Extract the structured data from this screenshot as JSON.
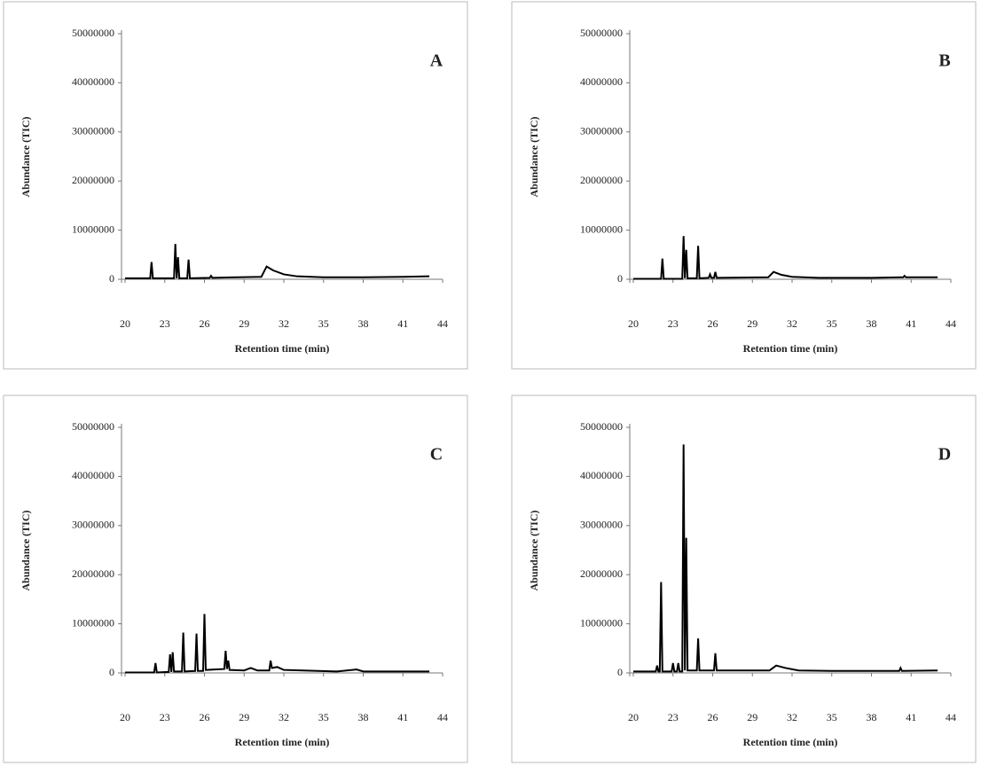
{
  "chart_data": [
    {
      "type": "line",
      "label": "A",
      "x_label": "Retention time (min)",
      "y_label": "Abundance (TIC)",
      "color": "#000000",
      "xlim": [
        20,
        44
      ],
      "ylim": [
        0,
        50000000
      ],
      "xticks": [
        20,
        23,
        26,
        29,
        32,
        35,
        38,
        41,
        44
      ],
      "yticks": [
        0,
        10000000,
        20000000,
        30000000,
        40000000,
        50000000
      ],
      "x": [
        20,
        21.9,
        22,
        22.1,
        23.7,
        23.8,
        23.9,
        24,
        24.1,
        24.7,
        24.8,
        24.9,
        26.4,
        26.5,
        26.6,
        30.3,
        30.7,
        31.2,
        32,
        33,
        35,
        38,
        41,
        43
      ],
      "values": [
        200000,
        200000,
        3500000,
        200000,
        200000,
        7200000,
        200000,
        4500000,
        200000,
        200000,
        4000000,
        200000,
        300000,
        700000,
        300000,
        500000,
        2600000,
        1800000,
        1000000,
        600000,
        400000,
        400000,
        500000,
        600000
      ]
    },
    {
      "type": "line",
      "label": "B",
      "x_label": "Retention time (min)",
      "y_label": "Abundance (TIC)",
      "color": "#000000",
      "xlim": [
        20,
        44
      ],
      "ylim": [
        0,
        50000000
      ],
      "xticks": [
        20,
        23,
        26,
        29,
        32,
        35,
        38,
        41,
        44
      ],
      "yticks": [
        0,
        10000000,
        20000000,
        30000000,
        40000000,
        50000000
      ],
      "x": [
        20,
        22.1,
        22.2,
        22.3,
        23.7,
        23.8,
        23.9,
        24,
        24.1,
        24.8,
        24.9,
        25,
        25.7,
        25.8,
        25.9,
        26.1,
        26.2,
        26.3,
        30.2,
        30.6,
        31.2,
        32,
        34,
        38,
        40.4,
        40.5,
        40.6,
        43
      ],
      "values": [
        100000,
        100000,
        4200000,
        100000,
        100000,
        8800000,
        200000,
        6000000,
        200000,
        200000,
        6800000,
        200000,
        300000,
        1000000,
        300000,
        300000,
        1500000,
        300000,
        400000,
        1500000,
        900000,
        500000,
        300000,
        300000,
        400000,
        700000,
        400000,
        400000
      ]
    },
    {
      "type": "line",
      "label": "C",
      "x_label": "Retention time (min)",
      "y_label": "Abundance (TIC)",
      "color": "#000000",
      "xlim": [
        20,
        44
      ],
      "ylim": [
        0,
        50000000
      ],
      "xticks": [
        20,
        23,
        26,
        29,
        32,
        35,
        38,
        41,
        44
      ],
      "yticks": [
        0,
        10000000,
        20000000,
        30000000,
        40000000,
        50000000
      ],
      "x": [
        20,
        22.2,
        22.3,
        22.4,
        23.3,
        23.4,
        23.5,
        23.6,
        23.7,
        24.3,
        24.4,
        24.5,
        25.3,
        25.4,
        25.5,
        25.9,
        26,
        26.1,
        27.5,
        27.6,
        27.7,
        27.8,
        27.9,
        29,
        29.5,
        30,
        30.9,
        31,
        31.1,
        31.5,
        32,
        36,
        37.5,
        38,
        43
      ],
      "values": [
        100000,
        100000,
        2000000,
        100000,
        200000,
        3800000,
        200000,
        4200000,
        300000,
        300000,
        8200000,
        300000,
        400000,
        8000000,
        400000,
        400000,
        12000000,
        600000,
        800000,
        4500000,
        800000,
        2500000,
        600000,
        500000,
        1000000,
        500000,
        500000,
        2500000,
        1000000,
        1200000,
        600000,
        300000,
        700000,
        300000,
        300000
      ]
    },
    {
      "type": "line",
      "label": "D",
      "x_label": "Retention time (min)",
      "y_label": "Abundance (TIC)",
      "color": "#000000",
      "xlim": [
        20,
        44
      ],
      "ylim": [
        0,
        50000000
      ],
      "xticks": [
        20,
        23,
        26,
        29,
        32,
        35,
        38,
        41,
        44
      ],
      "yticks": [
        0,
        10000000,
        20000000,
        30000000,
        40000000,
        50000000
      ],
      "x": [
        20,
        21.7,
        21.8,
        21.9,
        22,
        22.1,
        22.2,
        22.9,
        23,
        23.1,
        23.3,
        23.4,
        23.5,
        23.7,
        23.8,
        23.9,
        24,
        24.1,
        24.8,
        24.9,
        25,
        26.1,
        26.2,
        26.3,
        30.3,
        30.8,
        31.5,
        32.5,
        35,
        40.1,
        40.2,
        40.3,
        43
      ],
      "values": [
        300000,
        300000,
        1500000,
        300000,
        300000,
        18500000,
        300000,
        300000,
        2000000,
        300000,
        300000,
        2000000,
        300000,
        300000,
        46500000,
        500000,
        27500000,
        500000,
        500000,
        7000000,
        500000,
        500000,
        4000000,
        500000,
        500000,
        1500000,
        1000000,
        500000,
        400000,
        400000,
        1000000,
        400000,
        500000
      ]
    }
  ]
}
